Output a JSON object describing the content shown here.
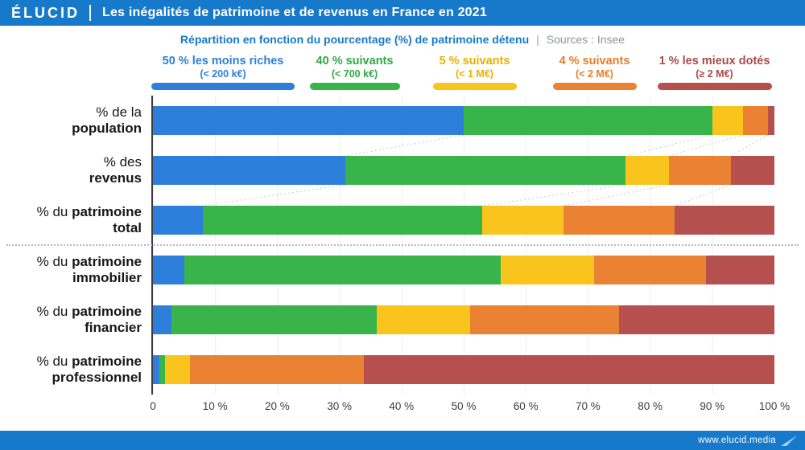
{
  "header": {
    "brand": "ÉLUCID",
    "title": "Les inégalités de patrimoine et de revenus en France en 2021"
  },
  "subtitle": {
    "text": "Répartition en fonction du pourcentage (%) de patrimoine détenu",
    "separator": "|",
    "sources": "Sources : Insee"
  },
  "colors": {
    "brand_blue": "#1779c9"
  },
  "legend": {
    "text_colors": [
      "#2e7fdb",
      "#2fa845",
      "#eab000",
      "#e87d2a",
      "#a94a49"
    ],
    "pill_widths": [
      178,
      112,
      104,
      104,
      142
    ]
  },
  "row_labels": [
    {
      "top_normal": "% de la",
      "top_bold": "",
      "bottom_bold": "population"
    },
    {
      "top_normal": "% des",
      "top_bold": "",
      "bottom_bold": "revenus"
    },
    {
      "top_normal": "% du",
      "top_bold": "patrimoine",
      "bottom_bold": "total"
    },
    {
      "top_normal": "% du",
      "top_bold": "patrimoine",
      "bottom_bold": "immobilier"
    },
    {
      "top_normal": "% du",
      "top_bold": "patrimoine",
      "bottom_bold": "financier"
    },
    {
      "top_normal": "% du",
      "top_bold": "patrimoine",
      "bottom_bold": "professionnel"
    }
  ],
  "chart_data": {
    "type": "bar",
    "stacked": true,
    "orientation": "horizontal",
    "title": "Les inégalités de patrimoine et de revenus en France en 2021",
    "subtitle": "Répartition en fonction du pourcentage (%) de patrimoine détenu",
    "source": "Sources : Insee",
    "unit": "%",
    "xlim": [
      0,
      100
    ],
    "x_ticks": [
      "0",
      "10 %",
      "20 %",
      "30 %",
      "40 %",
      "50 %",
      "60 %",
      "70 %",
      "80 %",
      "90 %",
      "100 %"
    ],
    "grid": true,
    "legend_position": "top",
    "categories": [
      "% de la population",
      "% des revenus",
      "% du patrimoine total",
      "% du patrimoine immobilier",
      "% du patrimoine financier",
      "% du patrimoine professionnel"
    ],
    "series": [
      {
        "name": "50 % les moins riches",
        "range": "(< 200 k€)",
        "color": "#2e7fdb",
        "values": [
          50,
          31,
          8,
          5,
          3,
          1
        ]
      },
      {
        "name": "40 % suivants",
        "range": "(< 700 k€)",
        "color": "#38b44a",
        "values": [
          40,
          45,
          45,
          51,
          33,
          1
        ]
      },
      {
        "name": "5 % suivants",
        "range": "(< 1 M€)",
        "color": "#f9c51d",
        "values": [
          5,
          7,
          13,
          15,
          15,
          4
        ]
      },
      {
        "name": "4 % suivants",
        "range": "(< 2 M€)",
        "color": "#ea8133",
        "values": [
          4,
          10,
          18,
          18,
          24,
          28
        ]
      },
      {
        "name": "1 % les mieux dotés",
        "range": "(≥ 2 M€)",
        "color": "#b5504e",
        "values": [
          1,
          7,
          16,
          11,
          25,
          66
        ]
      }
    ],
    "connected_row_pairs": [
      [
        0,
        1
      ],
      [
        1,
        2
      ]
    ]
  },
  "footer": {
    "url": "www.elucid.media"
  }
}
